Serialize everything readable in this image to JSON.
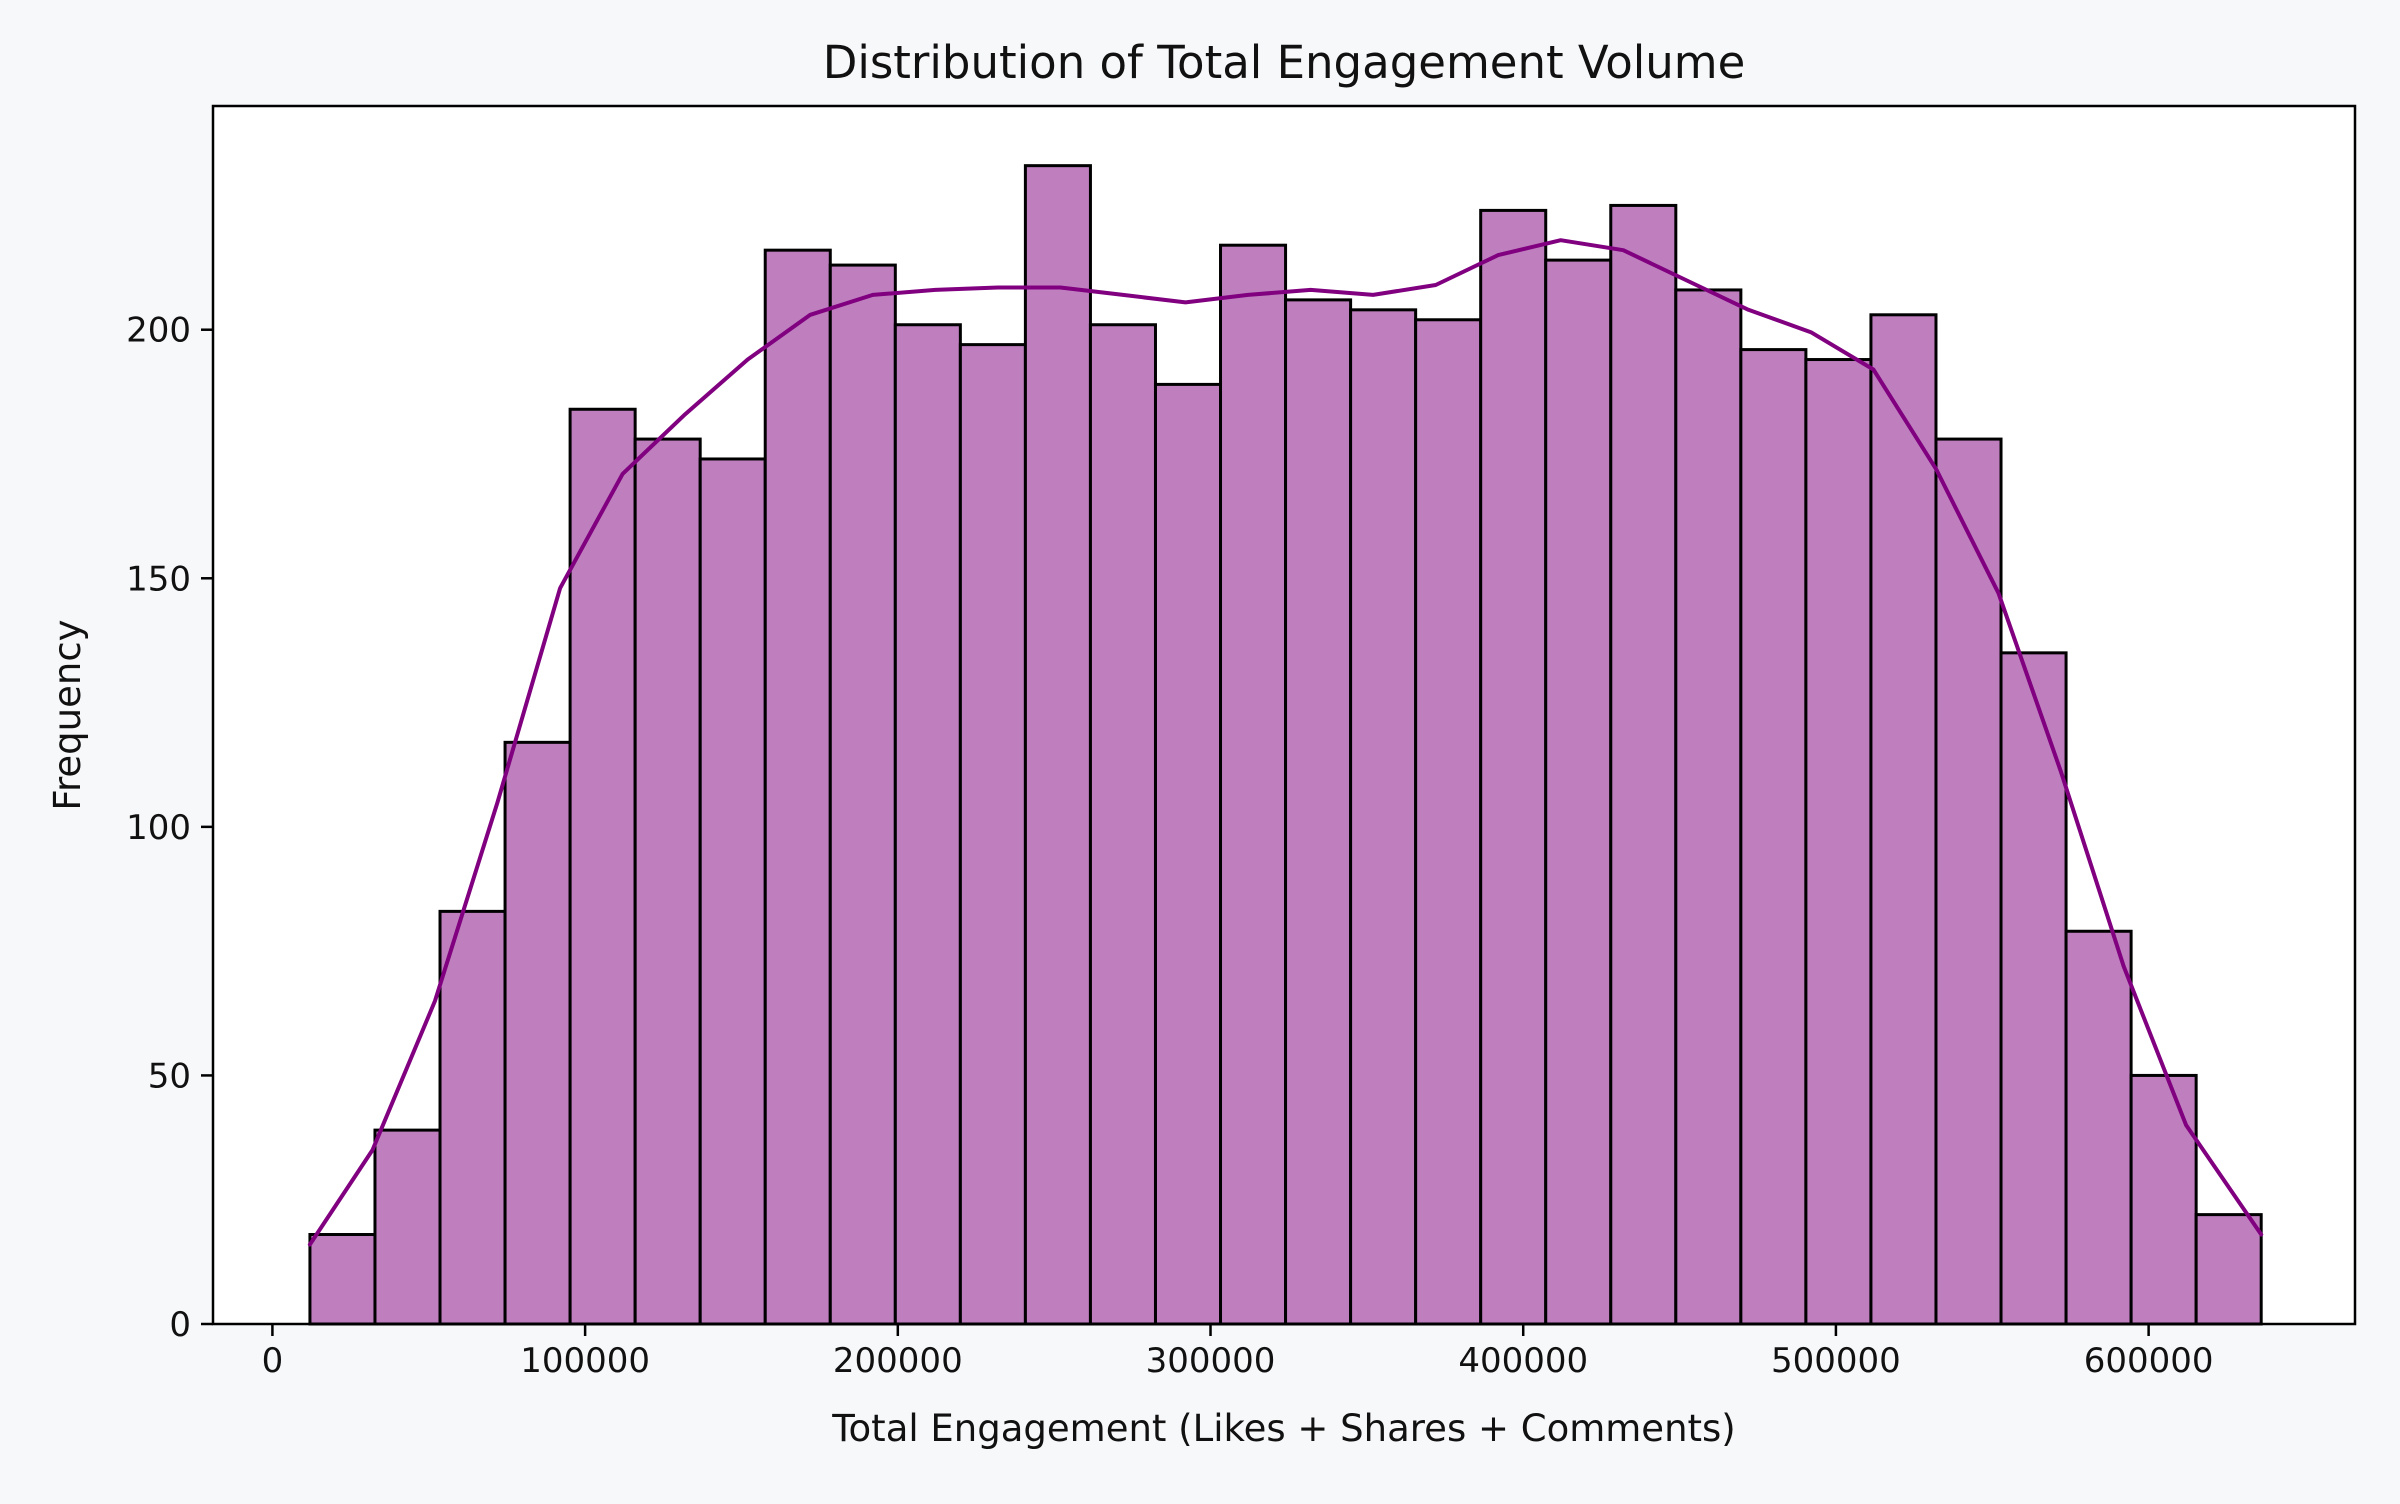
{
  "chart_data": {
    "type": "bar",
    "subtype": "histogram",
    "title": "Distribution of Total Engagement Volume",
    "xlabel": "Total Engagement (Likes + Shares + Comments)",
    "ylabel": "Frequency",
    "xlim": [
      -19000,
      666000
    ],
    "ylim": [
      0,
      245
    ],
    "grid": false,
    "colors": {
      "bar_fill": "#bf7fbf",
      "bar_edge": "#000000",
      "kde_line": "#800080",
      "plot_background": "#ffffff",
      "figure_background": "#f7f8fa"
    },
    "x_ticks": [
      0,
      100000,
      200000,
      300000,
      400000,
      500000,
      600000
    ],
    "x_tick_labels": [
      "0",
      "100000",
      "200000",
      "300000",
      "400000",
      "500000",
      "600000"
    ],
    "y_ticks": [
      0,
      50,
      100,
      150,
      200
    ],
    "y_tick_labels": [
      "0",
      "50",
      "100",
      "150",
      "200"
    ],
    "bin_edges": [
      12000,
      32800,
      53600,
      74400,
      95200,
      116000,
      136800,
      157600,
      178400,
      199200,
      220000,
      240800,
      261600,
      282400,
      303200,
      324000,
      344800,
      365600,
      386400,
      407200,
      428000,
      448800,
      469600,
      490400,
      511200,
      532000,
      552800,
      573600,
      594400,
      615200,
      636000
    ],
    "values": [
      18,
      39,
      83,
      117,
      184,
      178,
      174,
      216,
      213,
      201,
      197,
      233,
      201,
      189,
      217,
      206,
      204,
      202,
      224,
      214,
      225,
      208,
      196,
      194,
      203,
      178,
      135,
      79,
      50,
      22
    ],
    "kde": {
      "x": [
        12000,
        32000,
        52000,
        72000,
        92000,
        112000,
        132000,
        152000,
        172000,
        192000,
        212000,
        232000,
        252000,
        272000,
        292000,
        312000,
        332000,
        352000,
        372000,
        392000,
        412000,
        432000,
        452000,
        472000,
        492000,
        512000,
        532000,
        552000,
        572000,
        592000,
        612000,
        636000
      ],
      "y": [
        16,
        35,
        65,
        105,
        148,
        171,
        183,
        194,
        203,
        207,
        208,
        208.5,
        208.5,
        207,
        205.5,
        207,
        208,
        207,
        209,
        215,
        218,
        216,
        210,
        204,
        199.5,
        192,
        172,
        147,
        111,
        72,
        40,
        18
      ]
    }
  }
}
